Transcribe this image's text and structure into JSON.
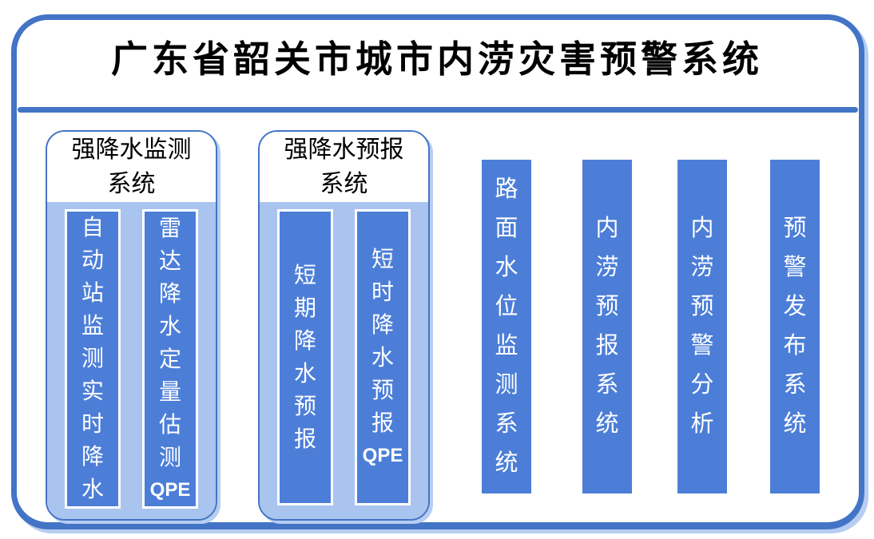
{
  "title": "广东省韶关市城市内涝灾害预警系统",
  "groups": [
    {
      "title": "强降水监测系统",
      "bars": [
        {
          "label": "自动站监测实时降水"
        },
        {
          "label": "雷达降水定量估测QPE"
        }
      ]
    },
    {
      "title": "强降水预报系统",
      "bars": [
        {
          "label": "短期降水预报"
        },
        {
          "label": "短时降水预报QPE"
        }
      ]
    }
  ],
  "standalone_bars": [
    {
      "label": "路面水位监测系统"
    },
    {
      "label": "内涝预报系统"
    },
    {
      "label": "内涝预警分析"
    },
    {
      "label": "预警发布系统"
    }
  ],
  "colors": {
    "frame_blue": "#4374C6",
    "bar_blue": "#4C7ED8",
    "panel_light_blue": "#A9C4EE",
    "shadow_blue": "#B7CDF1",
    "title_text": "#000000",
    "bar_text": "#FFFFFF"
  }
}
